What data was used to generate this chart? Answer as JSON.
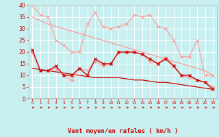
{
  "x": [
    0,
    1,
    2,
    3,
    4,
    5,
    6,
    7,
    8,
    9,
    10,
    11,
    12,
    13,
    14,
    15,
    16,
    17,
    18,
    19,
    20,
    21,
    22,
    23
  ],
  "line1_light": [
    40,
    36,
    35,
    25,
    23,
    20,
    20,
    32,
    37,
    31,
    30,
    31,
    32,
    36,
    35,
    36,
    31,
    30,
    25,
    18,
    18,
    25,
    10,
    10
  ],
  "line2_light": [
    20,
    12,
    12,
    13,
    10,
    8,
    13,
    12,
    16,
    14,
    15,
    20,
    20,
    20,
    19,
    16,
    15,
    18,
    14,
    10,
    9,
    8,
    7,
    5
  ],
  "line3_dark": [
    21,
    12,
    12,
    14,
    10,
    10,
    13,
    10,
    17,
    15,
    15,
    20,
    20,
    20,
    19,
    17,
    15,
    17,
    14,
    10,
    10,
    8,
    7,
    4
  ],
  "line4_trend_top": [
    35,
    33.5,
    32,
    31,
    30,
    29,
    28,
    27,
    26,
    25,
    24,
    23,
    22,
    21,
    20,
    19,
    18,
    17,
    16,
    15,
    14,
    13,
    12,
    10
  ],
  "line5_trend_bot": [
    13,
    12.5,
    12,
    11.5,
    11,
    10.5,
    10,
    9.5,
    9,
    9,
    9,
    9,
    8.5,
    8,
    8,
    7.5,
    7,
    7,
    6.5,
    6,
    5.5,
    5,
    4.5,
    4
  ],
  "bg_color": "#c8f0f0",
  "grid_color": "#ffffff",
  "line_light_color": "#ff9999",
  "line_dark_color": "#cc0000",
  "xlabel": "Vent moyen/en rafales ( km/h )",
  "xlabel_color": "#cc0000",
  "tick_color": "#cc0000",
  "ylim": [
    0,
    40
  ],
  "xlim": [
    -0.5,
    23.5
  ],
  "yticks": [
    0,
    5,
    10,
    15,
    20,
    25,
    30,
    35,
    40
  ],
  "ytick_labels": [
    "0",
    "5",
    "10",
    "15",
    "20",
    "25",
    "30",
    "35",
    "40"
  ]
}
